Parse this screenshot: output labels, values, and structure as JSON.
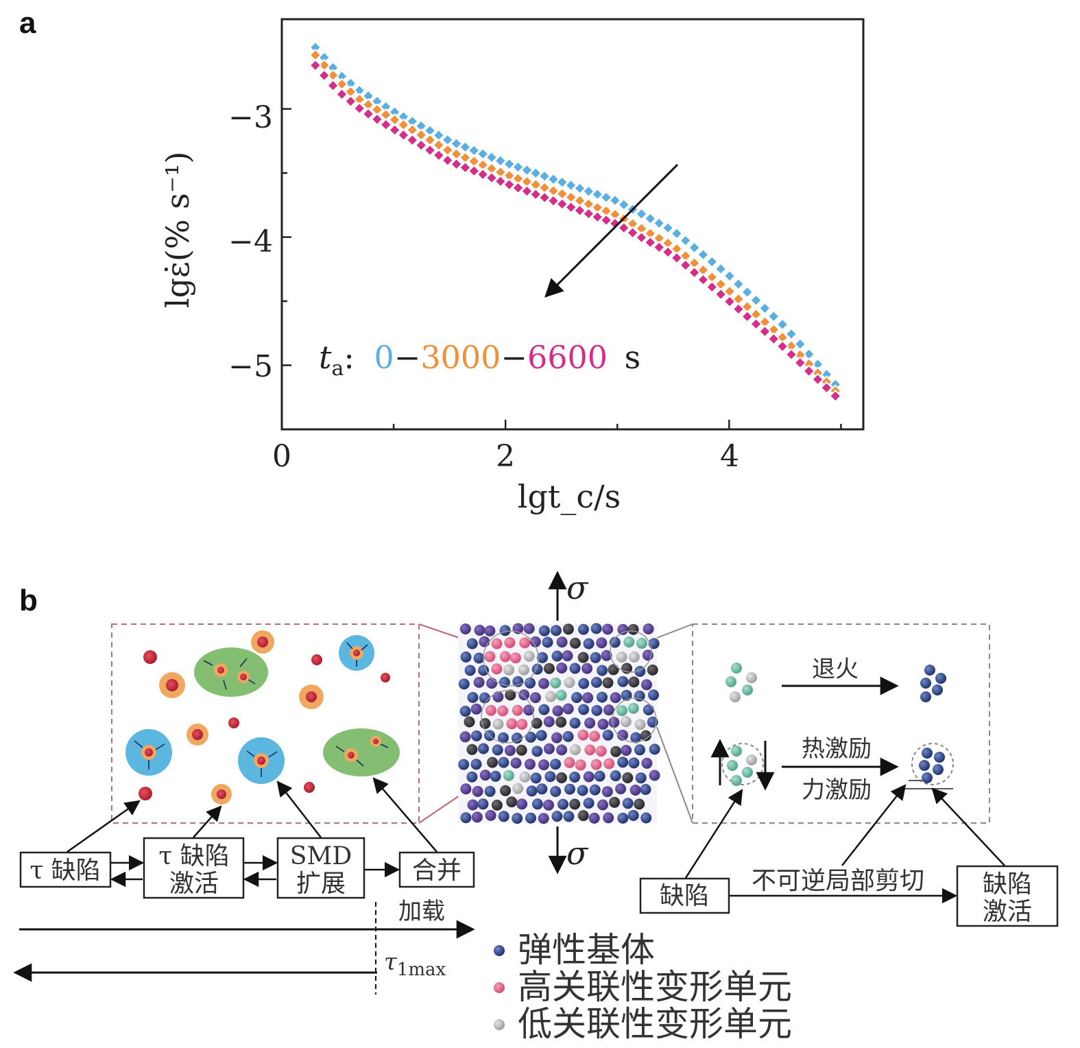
{
  "panel_a": {
    "label": "a",
    "chart_data": {
      "type": "scatter",
      "xlabel": "lgt_c/s",
      "ylabel": "lgε̇(% s⁻¹)",
      "xlim": [
        0,
        5.2
      ],
      "ylim": [
        -5.5,
        -2.3
      ],
      "xticks": [
        "0",
        "2",
        "4"
      ],
      "yticks": [
        "−3",
        "−4",
        "−5"
      ],
      "grid": false,
      "annotation": {
        "prefix": "t",
        "subscript": "a",
        "sep": ":",
        "v0": "0",
        "dash": "−",
        "v1": "3000",
        "v2": "6600",
        "unit": "s"
      },
      "series": [
        {
          "name": "0",
          "color": "#5aaee0",
          "x": [
            0.3,
            0.5,
            0.7,
            1.0,
            1.5,
            2.0,
            2.5,
            3.0,
            3.5,
            4.0,
            4.5,
            4.95
          ],
          "y": [
            -2.52,
            -2.72,
            -2.86,
            -3.02,
            -3.25,
            -3.42,
            -3.57,
            -3.72,
            -3.95,
            -4.3,
            -4.7,
            -5.15
          ]
        },
        {
          "name": "3000",
          "color": "#f0903a",
          "x": [
            0.3,
            0.5,
            0.7,
            1.0,
            1.5,
            2.0,
            2.5,
            3.0,
            3.5,
            4.0,
            4.5,
            4.95
          ],
          "y": [
            -2.58,
            -2.78,
            -2.93,
            -3.08,
            -3.33,
            -3.51,
            -3.66,
            -3.83,
            -4.07,
            -4.42,
            -4.8,
            -5.2
          ]
        },
        {
          "name": "6600",
          "color": "#d42e8a",
          "x": [
            0.3,
            0.5,
            0.7,
            1.0,
            1.5,
            2.0,
            2.5,
            3.0,
            3.5,
            4.0,
            4.5,
            4.95
          ],
          "y": [
            -2.66,
            -2.86,
            -3.0,
            -3.16,
            -3.41,
            -3.58,
            -3.74,
            -3.9,
            -4.14,
            -4.5,
            -4.87,
            -5.24
          ]
        }
      ]
    }
  },
  "panel_b": {
    "label": "b",
    "sigma": "σ",
    "left_flow": {
      "box1": "τ 缺陷",
      "box2_l1": "τ 缺陷",
      "box2_l2": "激活",
      "box3_l1": "SMD",
      "box3_l2": "扩展",
      "box4": "合并",
      "loading": "加载",
      "tau_max_sym": "τ",
      "tau_max_sub": "1max"
    },
    "right_flow": {
      "anneal": "退火",
      "thermal": "热激励",
      "mechanical": "力激励",
      "defect": "缺陷",
      "irreversible": "不可逆局部剪切",
      "activation_l1": "缺陷",
      "activation_l2": "激活"
    },
    "legend": [
      {
        "label": "弹性基体",
        "color": "#2b3a78"
      },
      {
        "label": "高关联性变形单元",
        "color": "#e4638a"
      },
      {
        "label": "低关联性变形单元",
        "color": "#b8b8b8"
      }
    ]
  }
}
